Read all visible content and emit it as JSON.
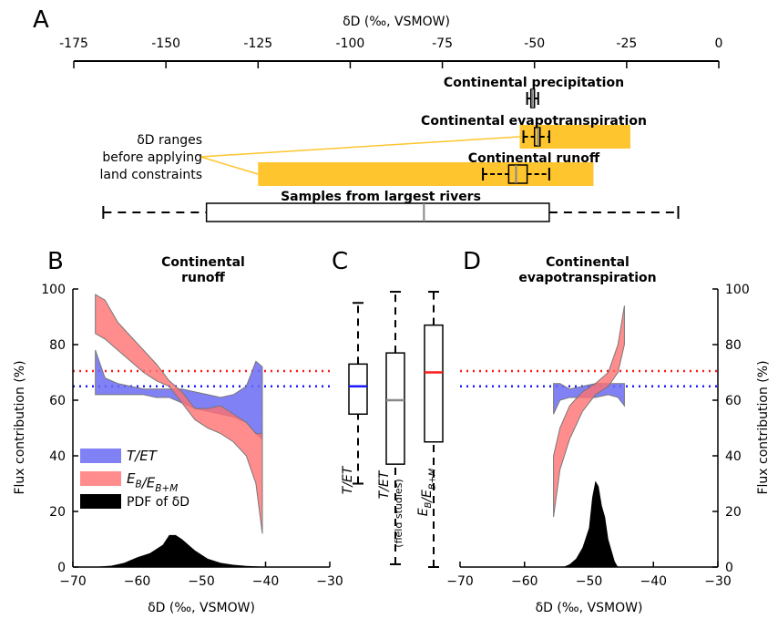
{
  "panels": {
    "a": "A",
    "b": "B",
    "c": "C",
    "d": "D"
  },
  "colors": {
    "t_et": "#6b6bf5",
    "eb": "#ff7070",
    "pdf": "#000000",
    "red_line": "#ff1a1a",
    "blue_line": "#1a1aff",
    "highlight": "#ffc52e"
  },
  "chart_data": [
    {
      "type": "box",
      "panel": "A",
      "xlabel": "δD (‰, VSMOW)",
      "xlim": [
        -175,
        0
      ],
      "xticks": [
        "-175",
        "-150",
        "-125",
        "-100",
        "-75",
        "-50",
        "-25",
        "0"
      ],
      "annotation": [
        "δD ranges",
        "before applying",
        "land constraints"
      ],
      "rows": [
        {
          "label": "Continental precipitation",
          "whisker_low": -52,
          "q1": -51,
          "median": -50.5,
          "q3": -50,
          "whisker_high": -49
        },
        {
          "label": "Continental evapotranspiration",
          "whisker_low": -53,
          "q1": -50,
          "median": -49,
          "q3": -48.5,
          "whisker_high": -46,
          "range_before": [
            -54,
            -24
          ]
        },
        {
          "label": "Continental runoff",
          "whisker_low": -64,
          "q1": -57,
          "median": -55,
          "q3": -52,
          "whisker_high": -46,
          "range_before": [
            -125,
            -34
          ]
        },
        {
          "label": "Samples from largest rivers",
          "whisker_low": -167,
          "q1": -139,
          "median": -80,
          "q3": -46,
          "whisker_high": -11
        }
      ]
    },
    {
      "type": "area",
      "panel": "B",
      "title": "Continental runoff",
      "title_lines": [
        "Continental",
        "runoff"
      ],
      "xlabel": "δD (‰, VSMOW)",
      "ylabel": "Flux contribution (%)",
      "xlim": [
        -70,
        -30
      ],
      "ylim": [
        0,
        100
      ],
      "xticks": [
        "−70",
        "−60",
        "−50",
        "−40",
        "−30"
      ],
      "yticks": [
        "0",
        "20",
        "40",
        "60",
        "80",
        "100"
      ],
      "legend": [
        "T/ET",
        "E_B/E_B+M",
        "PDF of δD"
      ],
      "hlines": {
        "red": 70.5,
        "blue": 65
      },
      "series": [
        {
          "name": "T/ET",
          "x": [
            -66.5,
            -65,
            -63,
            -61,
            -59,
            -57,
            -55,
            -53,
            -51,
            -49,
            -47,
            -45,
            -43,
            -41.5,
            -40.5
          ],
          "lower": [
            62,
            62,
            62,
            62,
            62,
            61,
            61,
            59,
            57,
            56,
            55,
            54,
            52,
            48,
            46
          ],
          "upper": [
            78,
            68,
            66,
            65,
            64,
            64,
            64,
            64,
            63,
            62,
            61,
            62,
            65,
            74,
            72
          ]
        },
        {
          "name": "E_B/E_B+M",
          "x": [
            -66.5,
            -65,
            -63,
            -61,
            -59,
            -57,
            -55,
            -53,
            -51,
            -49,
            -47,
            -45,
            -43,
            -41.5,
            -40.5
          ],
          "lower": [
            84,
            82,
            78,
            74,
            70,
            67,
            65,
            59,
            53,
            50,
            48,
            45,
            40,
            30,
            12
          ],
          "upper": [
            98,
            96,
            88,
            83,
            78,
            73,
            67,
            63,
            57,
            57,
            58,
            55,
            52,
            48,
            48
          ]
        },
        {
          "name": "PDF of δD",
          "x": [
            -67,
            -64,
            -62,
            -60,
            -58,
            -56,
            -55,
            -54,
            -53,
            -51,
            -49,
            -47,
            -45,
            -43,
            -41,
            -40.5
          ],
          "values": [
            0,
            0.5,
            1.5,
            3.5,
            5,
            8,
            11.5,
            11.5,
            10,
            6,
            3,
            1.5,
            0.8,
            0.4,
            0.2,
            0
          ]
        }
      ]
    },
    {
      "type": "box",
      "panel": "C",
      "ylim": [
        0,
        100
      ],
      "boxes": [
        {
          "label": "T/ET",
          "whisker_low": 30,
          "q1": 55,
          "median": 65,
          "q3": 73,
          "whisker_high": 95,
          "median_color": "#1a1aff"
        },
        {
          "label": "T/ET",
          "sublabel": "(field studies)",
          "whisker_low": 1,
          "q1": 37,
          "median": 60,
          "q3": 77,
          "whisker_high": 99,
          "median_color": "#888888"
        },
        {
          "label": "E_B/E_B+M",
          "whisker_low": 0,
          "q1": 45,
          "median": 70,
          "q3": 87,
          "whisker_high": 99,
          "median_color": "#ff1a1a"
        }
      ]
    },
    {
      "type": "area",
      "panel": "D",
      "title": "Continental evapotranspiration",
      "title_lines": [
        "Continental",
        "evapotranspiration"
      ],
      "xlabel": "δD (‰, VSMOW)",
      "ylabel": "Flux contribution (%)",
      "xlim": [
        -70,
        -30
      ],
      "ylim": [
        0,
        100
      ],
      "xticks": [
        "−70",
        "−60",
        "−50",
        "−40",
        "−30"
      ],
      "yticks": [
        "0",
        "20",
        "40",
        "60",
        "80",
        "100"
      ],
      "hlines": {
        "red": 70.5,
        "blue": 65
      },
      "series": [
        {
          "name": "T/ET",
          "x": [
            -55.5,
            -54.5,
            -53,
            -51,
            -49,
            -47,
            -45.5,
            -44.5
          ],
          "lower": [
            55,
            60,
            61,
            61,
            61,
            62,
            61,
            58
          ],
          "upper": [
            66,
            66,
            64,
            65,
            66,
            66,
            66,
            66
          ]
        },
        {
          "name": "E_B/E_B+M",
          "x": [
            -55.5,
            -54.5,
            -53,
            -51,
            -49,
            -47,
            -45.5,
            -44.5
          ],
          "lower": [
            18,
            35,
            46,
            56,
            62,
            65,
            70,
            80
          ],
          "upper": [
            40,
            50,
            58,
            63,
            66,
            70,
            80,
            94
          ]
        },
        {
          "name": "PDF of δD",
          "x": [
            -54,
            -53,
            -52,
            -51,
            -50,
            -49.5,
            -49,
            -48.5,
            -48,
            -47.5,
            -47,
            -46.5,
            -46,
            -45.5
          ],
          "values": [
            0,
            1,
            3,
            7,
            14,
            25,
            31,
            29,
            22,
            18,
            10,
            6,
            2,
            0
          ]
        }
      ]
    }
  ]
}
